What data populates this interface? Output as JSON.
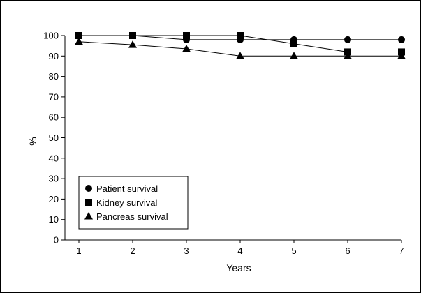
{
  "chart_data": {
    "type": "line",
    "title": "",
    "xlabel": "Years",
    "ylabel": "%",
    "x": [
      1,
      2,
      3,
      4,
      5,
      6,
      7
    ],
    "xlim": [
      1,
      7
    ],
    "ylim": [
      0,
      100
    ],
    "yticks": [
      0,
      10,
      20,
      30,
      40,
      50,
      60,
      70,
      80,
      90,
      100
    ],
    "grid": false,
    "legend_position": "bottom-left",
    "series": [
      {
        "name": "Patient survival",
        "marker": "circle",
        "color": "#000000",
        "values": [
          100,
          100,
          98,
          98,
          98,
          98,
          98
        ]
      },
      {
        "name": "Kidney survival",
        "marker": "square",
        "color": "#000000",
        "values": [
          100,
          100,
          100,
          100,
          96,
          92,
          92
        ]
      },
      {
        "name": "Pancreas survival",
        "marker": "triangle",
        "color": "#000000",
        "values": [
          97,
          95.5,
          93.5,
          90,
          90,
          90,
          90
        ]
      }
    ]
  }
}
